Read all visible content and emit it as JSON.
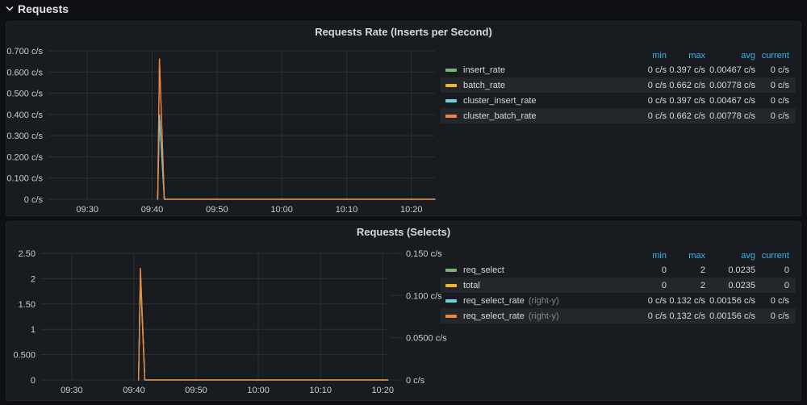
{
  "page": {
    "row_header": "Requests"
  },
  "colors": {
    "header_accent": "#33b5e5",
    "panel_background": "#181b1f",
    "page_background": "#0e1014",
    "grid": "#2c2f36",
    "axis_text": "#c9ccd1"
  },
  "chart_data": [
    {
      "type": "line",
      "title": "Requests Rate (Inserts per Second)",
      "x_note": "x values are clock time in decimal hours",
      "x_range_hours": [
        9.4,
        10.394
      ],
      "x_ticks": [
        {
          "label": "09:30",
          "t": 9.5
        },
        {
          "label": "09:40",
          "t": 9.6667
        },
        {
          "label": "09:50",
          "t": 9.8333
        },
        {
          "label": "10:00",
          "t": 10.0
        },
        {
          "label": "10:10",
          "t": 10.1667
        },
        {
          "label": "10:20",
          "t": 10.3333
        }
      ],
      "y_left": {
        "range": [
          0,
          0.7
        ],
        "ticks": [
          {
            "label": "0.700 c/s",
            "v": 0.7
          },
          {
            "label": "0.600 c/s",
            "v": 0.6
          },
          {
            "label": "0.500 c/s",
            "v": 0.5
          },
          {
            "label": "0.400 c/s",
            "v": 0.4
          },
          {
            "label": "0.300 c/s",
            "v": 0.3
          },
          {
            "label": "0.200 c/s",
            "v": 0.2
          },
          {
            "label": "0.100 c/s",
            "v": 0.1
          },
          {
            "label": "0 c/s",
            "v": 0
          }
        ]
      },
      "legend_headers": [
        "min",
        "max",
        "avg",
        "current"
      ],
      "series": [
        {
          "name": "insert_rate",
          "suffix": "",
          "color": "#7EB26D",
          "axis": "left",
          "points": [
            [
              9.681,
              0
            ],
            [
              9.6855,
              0.397
            ],
            [
              9.698,
              0
            ],
            [
              10.394,
              0
            ]
          ],
          "stats": {
            "min": "0 c/s",
            "max": "0.397 c/s",
            "avg": "0.00467 c/s",
            "current": "0 c/s"
          }
        },
        {
          "name": "batch_rate",
          "suffix": "",
          "color": "#EAB839",
          "axis": "left",
          "points": [
            [
              9.681,
              0
            ],
            [
              9.6855,
              0.662
            ],
            [
              9.698,
              0
            ],
            [
              10.394,
              0
            ]
          ],
          "stats": {
            "min": "0 c/s",
            "max": "0.662 c/s",
            "avg": "0.00778 c/s",
            "current": "0 c/s"
          }
        },
        {
          "name": "cluster_insert_rate",
          "suffix": "",
          "color": "#6ED0E0",
          "axis": "left",
          "points": [
            [
              9.681,
              0
            ],
            [
              9.6855,
              0.397
            ],
            [
              9.698,
              0
            ],
            [
              10.394,
              0
            ]
          ],
          "stats": {
            "min": "0 c/s",
            "max": "0.397 c/s",
            "avg": "0.00467 c/s",
            "current": "0 c/s"
          }
        },
        {
          "name": "cluster_batch_rate",
          "suffix": "",
          "color": "#EF843C",
          "axis": "left",
          "points": [
            [
              9.681,
              0
            ],
            [
              9.6855,
              0.662
            ],
            [
              9.698,
              0
            ],
            [
              10.394,
              0
            ]
          ],
          "stats": {
            "min": "0 c/s",
            "max": "0.662 c/s",
            "avg": "0.00778 c/s",
            "current": "0 c/s"
          }
        }
      ]
    },
    {
      "type": "line",
      "title": "Requests (Selects)",
      "x_note": "x values are clock time in decimal hours",
      "x_range_hours": [
        9.418,
        10.348
      ],
      "x_ticks": [
        {
          "label": "09:30",
          "t": 9.5
        },
        {
          "label": "09:40",
          "t": 9.6667
        },
        {
          "label": "09:50",
          "t": 9.8333
        },
        {
          "label": "10:00",
          "t": 10.0
        },
        {
          "label": "10:10",
          "t": 10.1667
        },
        {
          "label": "10:20",
          "t": 10.3333
        }
      ],
      "y_left": {
        "range": [
          0,
          2.5
        ],
        "ticks": [
          {
            "label": "2.50",
            "v": 2.5
          },
          {
            "label": "2",
            "v": 2
          },
          {
            "label": "1.50",
            "v": 1.5
          },
          {
            "label": "1",
            "v": 1
          },
          {
            "label": "0.500",
            "v": 0.5
          },
          {
            "label": "0",
            "v": 0
          }
        ]
      },
      "y_right": {
        "range": [
          0,
          0.15
        ],
        "ticks": [
          {
            "label": "0.150 c/s",
            "v": 0.15
          },
          {
            "label": "0.100 c/s",
            "v": 0.1
          },
          {
            "label": "0.0500 c/s",
            "v": 0.05
          },
          {
            "label": "0 c/s",
            "v": 0
          }
        ]
      },
      "legend_headers": [
        "min",
        "max",
        "avg",
        "current"
      ],
      "series": [
        {
          "name": "req_select",
          "suffix": "",
          "color": "#7EB26D",
          "axis": "left",
          "points": [
            [
              9.679,
              0
            ],
            [
              9.684,
              2
            ],
            [
              9.696,
              0
            ],
            [
              10.348,
              0
            ]
          ],
          "stats": {
            "min": "0",
            "max": "2",
            "avg": "0.0235",
            "current": "0"
          }
        },
        {
          "name": "total",
          "suffix": "",
          "color": "#EAB839",
          "axis": "left",
          "points": [
            [
              9.679,
              0
            ],
            [
              9.684,
              2
            ],
            [
              9.696,
              0
            ],
            [
              10.348,
              0
            ]
          ],
          "stats": {
            "min": "0",
            "max": "2",
            "avg": "0.0235",
            "current": "0"
          }
        },
        {
          "name": "req_select_rate",
          "suffix": "(right-y)",
          "color": "#6ED0E0",
          "axis": "right",
          "points": [
            [
              9.679,
              0
            ],
            [
              9.684,
              0.132
            ],
            [
              9.696,
              0
            ],
            [
              10.348,
              0
            ]
          ],
          "stats": {
            "min": "0 c/s",
            "max": "0.132 c/s",
            "avg": "0.00156 c/s",
            "current": "0 c/s"
          }
        },
        {
          "name": "req_select_rate",
          "suffix": "(right-y)",
          "color": "#EF843C",
          "axis": "right",
          "points": [
            [
              9.679,
              0
            ],
            [
              9.684,
              0.132
            ],
            [
              9.696,
              0
            ],
            [
              10.348,
              0
            ]
          ],
          "stats": {
            "min": "0 c/s",
            "max": "0.132 c/s",
            "avg": "0.00156 c/s",
            "current": "0 c/s"
          }
        }
      ]
    }
  ]
}
